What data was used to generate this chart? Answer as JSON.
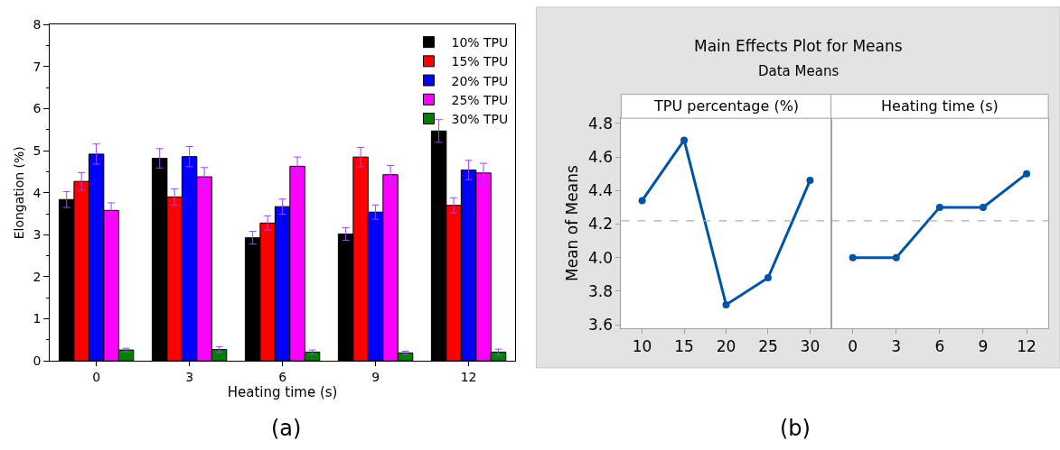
{
  "chart_data": [
    {
      "type": "bar",
      "xlabel": "Heating time (s)",
      "ylabel": "Elongation (%)",
      "categories": [
        "0",
        "3",
        "6",
        "9",
        "12"
      ],
      "ylim": [
        0,
        8
      ],
      "yticks": [
        0,
        1,
        2,
        3,
        4,
        5,
        6,
        7,
        8
      ],
      "legend": "top right",
      "grid": false,
      "annotations": [
        "(a)"
      ],
      "series": [
        {
          "name": "10% TPU",
          "color": "#000000",
          "values": [
            3.84,
            4.82,
            2.93,
            3.02,
            5.47
          ],
          "errors": [
            0.19,
            0.23,
            0.15,
            0.15,
            0.27
          ]
        },
        {
          "name": "15% TPU",
          "color": "#ff0000",
          "values": [
            4.27,
            3.9,
            3.28,
            4.85,
            3.7
          ],
          "errors": [
            0.21,
            0.19,
            0.17,
            0.23,
            0.18
          ]
        },
        {
          "name": "20% TPU",
          "color": "#0000ff",
          "values": [
            4.92,
            4.86,
            3.67,
            3.54,
            4.54
          ],
          "errors": [
            0.24,
            0.24,
            0.18,
            0.17,
            0.23
          ]
        },
        {
          "name": "25% TPU",
          "color": "#ff00ff",
          "values": [
            3.58,
            4.38,
            4.63,
            4.43,
            4.47
          ],
          "errors": [
            0.18,
            0.22,
            0.22,
            0.22,
            0.23
          ]
        },
        {
          "name": "30% TPU",
          "color": "#007f00",
          "values": [
            0.26,
            0.27,
            0.21,
            0.19,
            0.21
          ],
          "errors": [
            0.04,
            0.07,
            0.05,
            0.04,
            0.07
          ]
        }
      ]
    },
    {
      "type": "line",
      "title": "Main Effects Plot for Means",
      "subtitle": "Data Means",
      "xlabel": "TPU percentage (%)",
      "ylabel": "Mean of Means",
      "categories": [
        "10",
        "15",
        "20",
        "25",
        "30"
      ],
      "ylim": [
        3.58,
        4.83
      ],
      "yticks": [
        {
          "value": 3.6,
          "label": "3.6"
        },
        {
          "value": 3.8,
          "label": "3.8"
        },
        {
          "value": 4.0,
          "label": "4.0"
        },
        {
          "value": 4.2,
          "label": "4.2"
        },
        {
          "value": 4.4,
          "label": "4.4"
        },
        {
          "value": 4.6,
          "label": "4.6"
        },
        {
          "value": 4.8,
          "label": "4.8"
        }
      ],
      "marker": "circle",
      "line_style": "solid",
      "grid": false,
      "annotations": [
        "(b)"
      ],
      "ref_lines": [
        {
          "axis": "y",
          "value": 4.22,
          "color": "#b0b0b0",
          "line_style": "dashed"
        }
      ],
      "series": [
        {
          "color": "#0054a6",
          "values": [
            4.34,
            4.7,
            3.72,
            3.88,
            4.46
          ]
        }
      ]
    },
    {
      "type": "line",
      "xlabel": "Heating time (s)",
      "categories": [
        "0",
        "3",
        "6",
        "9",
        "12"
      ],
      "ylim": [
        3.58,
        4.83
      ],
      "tick_labels": "x",
      "marker": "circle",
      "line_style": "solid",
      "grid": false,
      "ref_lines": [
        {
          "axis": "y",
          "value": 4.22,
          "color": "#b0b0b0",
          "line_style": "dashed"
        }
      ],
      "series": [
        {
          "color": "#0054a6",
          "values": [
            4.0,
            4.0,
            4.3,
            4.3,
            4.5
          ]
        }
      ]
    }
  ]
}
